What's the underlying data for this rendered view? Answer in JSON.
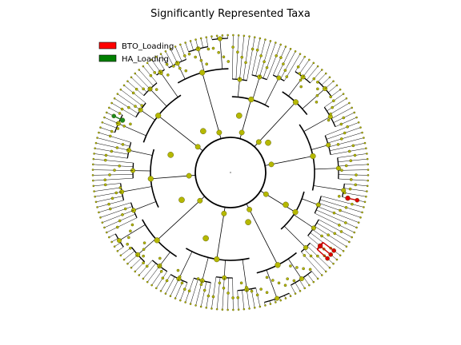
{
  "figure": {
    "title": "Significantly Represented Taxa",
    "type": "circular-cladogram"
  },
  "legend": [
    {
      "label": "BTO_Loading",
      "color": "#ff0000"
    },
    {
      "label": "HA_Loading",
      "color": "#008000"
    }
  ],
  "colors": {
    "node_default": "#b5b800",
    "node_stroke": "#4a4a00",
    "branch": "#000000",
    "bto_highlight": "#cc0000",
    "ha_highlight": "#1e7a1e",
    "background": "#ffffff"
  },
  "tree": {
    "leaf_count": 160,
    "highlighted_clades": [
      {
        "group": "BTO_Loading",
        "clade": "clade-lower-right"
      },
      {
        "group": "BTO_Loading",
        "clade": "clade-right-edge"
      },
      {
        "group": "HA_Loading",
        "clade": "clade-upper-left"
      }
    ]
  }
}
